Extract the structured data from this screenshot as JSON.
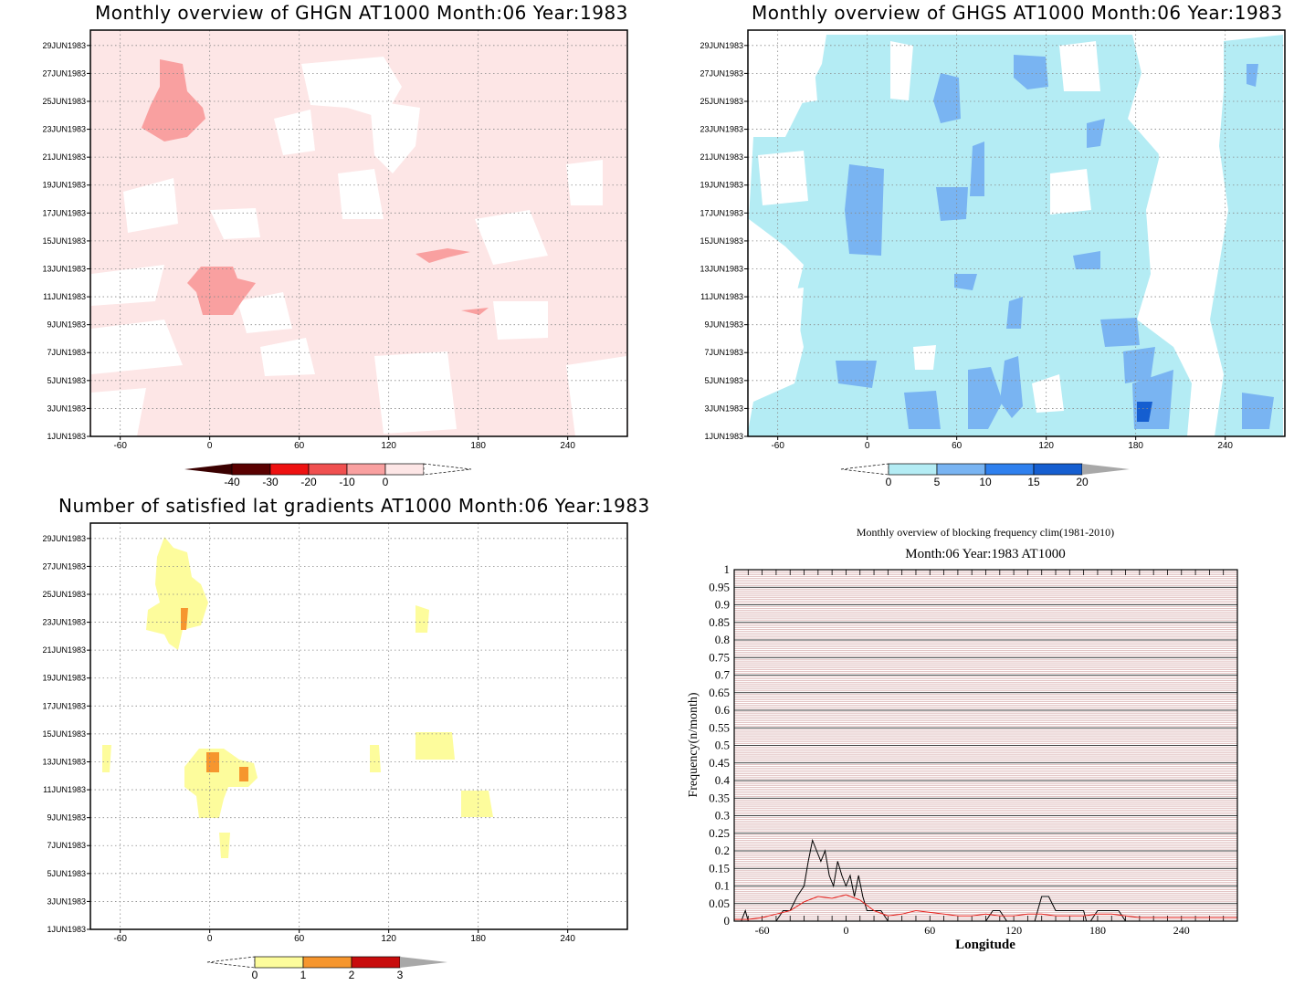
{
  "chart_data": [
    {
      "type": "heatmap",
      "title": "Monthly overview of GHGN AT1000 Month:06 Year:1983",
      "xlabel": "",
      "ylabel": "",
      "x_ticks": [
        "-60",
        "0",
        "60",
        "120",
        "180",
        "240"
      ],
      "y_ticks": [
        "1JUN1983",
        "3JUN1983",
        "5JUN1983",
        "7JUN1983",
        "9JUN1983",
        "11JUN1983",
        "13JUN1983",
        "15JUN1983",
        "17JUN1983",
        "19JUN1983",
        "21JUN1983",
        "23JUN1983",
        "25JUN1983",
        "27JUN1983",
        "29JUN1983"
      ],
      "xlim": [
        -80,
        280
      ],
      "colorbar": {
        "labels": [
          "-40",
          "-30",
          "-20",
          "-10",
          "0"
        ],
        "colors": [
          "#5a0000",
          "#ee1111",
          "#f05050",
          "#f9a0a0",
          "#fde6e6"
        ],
        "under": "#3a0000",
        "over": "#ffffff"
      },
      "grid": true
    },
    {
      "type": "heatmap",
      "title": "Monthly overview of GHGS AT1000 Month:06 Year:1983",
      "xlabel": "",
      "ylabel": "",
      "x_ticks": [
        "-60",
        "0",
        "60",
        "120",
        "180",
        "240"
      ],
      "y_ticks": [
        "1JUN1983",
        "3JUN1983",
        "5JUN1983",
        "7JUN1983",
        "9JUN1983",
        "11JUN1983",
        "13JUN1983",
        "15JUN1983",
        "17JUN1983",
        "19JUN1983",
        "21JUN1983",
        "23JUN1983",
        "25JUN1983",
        "27JUN1983",
        "29JUN1983"
      ],
      "xlim": [
        -80,
        280
      ],
      "colorbar": {
        "labels": [
          "0",
          "5",
          "10",
          "15",
          "20"
        ],
        "colors": [
          "#b4ecf4",
          "#79b4f2",
          "#2f80ee",
          "#155ed0"
        ],
        "under": "#ffffff",
        "over": "#a8a8a8"
      },
      "grid": true
    },
    {
      "type": "heatmap",
      "title": "Number of satisfied lat gradients AT1000 Month:06 Year:1983",
      "xlabel": "",
      "ylabel": "",
      "x_ticks": [
        "-60",
        "0",
        "60",
        "120",
        "180",
        "240"
      ],
      "y_ticks": [
        "1JUN1983",
        "3JUN1983",
        "5JUN1983",
        "7JUN1983",
        "9JUN1983",
        "11JUN1983",
        "13JUN1983",
        "15JUN1983",
        "17JUN1983",
        "19JUN1983",
        "21JUN1983",
        "23JUN1983",
        "25JUN1983",
        "27JUN1983",
        "29JUN1983"
      ],
      "xlim": [
        -80,
        280
      ],
      "colorbar": {
        "labels": [
          "0",
          "1",
          "2",
          "3"
        ],
        "colors": [
          "#fdfc9c",
          "#f6962e",
          "#c80c0c"
        ],
        "under": "#ffffff",
        "over": "#a8a8a8"
      },
      "grid": true
    },
    {
      "type": "line",
      "title": "Monthly overview of blocking frequency clim(1981-2010)",
      "subtitle": "Month:06 Year:1983  AT1000",
      "xlabel": "Longitude",
      "ylabel": "Frequency(n/month)",
      "xlim": [
        -80,
        280
      ],
      "ylim": [
        0,
        1
      ],
      "x_ticks": [
        "-60",
        "0",
        "60",
        "120",
        "180",
        "240"
      ],
      "y_ticks": [
        "0",
        "0.05",
        "0.1",
        "0.15",
        "0.2",
        "0.25",
        "0.3",
        "0.35",
        "0.4",
        "0.45",
        "0.5",
        "0.55",
        "0.6",
        "0.65",
        "0.7",
        "0.75",
        "0.8",
        "0.85",
        "0.9",
        "0.95",
        "1"
      ],
      "series": [
        {
          "color": "#000000",
          "x": [
            -80,
            -75,
            -72,
            -70,
            -65,
            -60,
            -50,
            -45,
            -40,
            -35,
            -30,
            -27,
            -24,
            -21,
            -18,
            -15,
            -12,
            -9,
            -6,
            -3,
            0,
            3,
            6,
            9,
            12,
            15,
            18,
            21,
            25,
            30,
            35,
            40,
            50,
            60,
            70,
            80,
            90,
            100,
            105,
            110,
            115,
            120,
            125,
            130,
            135,
            140,
            145,
            150,
            155,
            160,
            165,
            170,
            172,
            175,
            180,
            185,
            190,
            195,
            200,
            210,
            220,
            230,
            240,
            250,
            260,
            270,
            280
          ],
          "y": [
            0,
            0,
            0.03,
            0,
            0,
            0,
            0,
            0.03,
            0.03,
            0.07,
            0.1,
            0.17,
            0.23,
            0.2,
            0.17,
            0.2,
            0.13,
            0.1,
            0.17,
            0.13,
            0.1,
            0.13,
            0.07,
            0.13,
            0.07,
            0.03,
            0.03,
            0.03,
            0.03,
            0,
            0,
            0,
            0,
            0,
            0,
            0,
            0,
            0,
            0.03,
            0.03,
            0,
            0,
            0,
            0,
            0,
            0.07,
            0.07,
            0.03,
            0.03,
            0.03,
            0.03,
            0.03,
            0,
            0,
            0.03,
            0.03,
            0.03,
            0.03,
            0,
            0,
            0,
            0,
            0,
            0,
            0,
            0,
            0
          ]
        },
        {
          "color": "#e8211c",
          "x": [
            -80,
            -70,
            -60,
            -50,
            -40,
            -30,
            -20,
            -10,
            0,
            10,
            20,
            30,
            40,
            50,
            60,
            70,
            80,
            90,
            100,
            110,
            120,
            130,
            140,
            150,
            160,
            170,
            180,
            190,
            200,
            210,
            220,
            230,
            240,
            250,
            260,
            270,
            280
          ],
          "y": [
            0.005,
            0.005,
            0.01,
            0.02,
            0.03,
            0.055,
            0.07,
            0.065,
            0.075,
            0.06,
            0.03,
            0.015,
            0.02,
            0.03,
            0.025,
            0.02,
            0.015,
            0.015,
            0.02,
            0.015,
            0.015,
            0.02,
            0.02,
            0.015,
            0.015,
            0.015,
            0.02,
            0.02,
            0.015,
            0.01,
            0.01,
            0.01,
            0.01,
            0.01,
            0.01,
            0.01,
            0.01
          ]
        }
      ],
      "grid": true
    }
  ]
}
